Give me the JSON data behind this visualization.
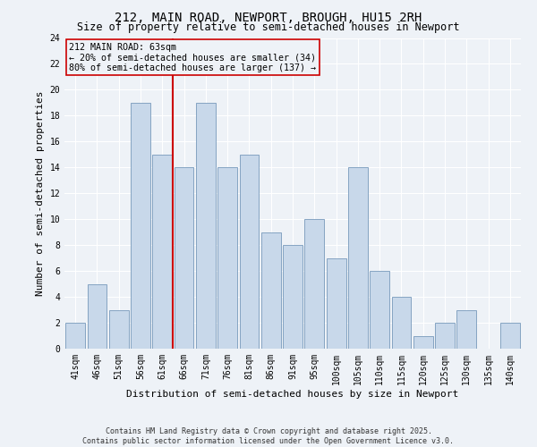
{
  "title": "212, MAIN ROAD, NEWPORT, BROUGH, HU15 2RH",
  "subtitle": "Size of property relative to semi-detached houses in Newport",
  "xlabel": "Distribution of semi-detached houses by size in Newport",
  "ylabel": "Number of semi-detached properties",
  "categories": [
    "41sqm",
    "46sqm",
    "51sqm",
    "56sqm",
    "61sqm",
    "66sqm",
    "71sqm",
    "76sqm",
    "81sqm",
    "86sqm",
    "91sqm",
    "95sqm",
    "100sqm",
    "105sqm",
    "110sqm",
    "115sqm",
    "120sqm",
    "125sqm",
    "130sqm",
    "135sqm",
    "140sqm"
  ],
  "values": [
    2,
    5,
    3,
    19,
    15,
    14,
    19,
    14,
    15,
    9,
    8,
    10,
    7,
    14,
    6,
    4,
    1,
    2,
    3,
    0,
    2
  ],
  "bar_color": "#c8d8ea",
  "bar_edge_color": "#7799bb",
  "property_line_x": 4.5,
  "property_label": "212 MAIN ROAD: 63sqm",
  "annotation_line1": "← 20% of semi-detached houses are smaller (34)",
  "annotation_line2": "80% of semi-detached houses are larger (137) →",
  "vline_color": "#cc0000",
  "ylim": [
    0,
    24
  ],
  "yticks": [
    0,
    2,
    4,
    6,
    8,
    10,
    12,
    14,
    16,
    18,
    20,
    22,
    24
  ],
  "background_color": "#eef2f7",
  "grid_color": "#ffffff",
  "footer_line1": "Contains HM Land Registry data © Crown copyright and database right 2025.",
  "footer_line2": "Contains public sector information licensed under the Open Government Licence v3.0.",
  "title_fontsize": 10,
  "subtitle_fontsize": 8.5,
  "annotation_fontsize": 7.2,
  "axis_label_fontsize": 8,
  "tick_fontsize": 7,
  "footer_fontsize": 6
}
